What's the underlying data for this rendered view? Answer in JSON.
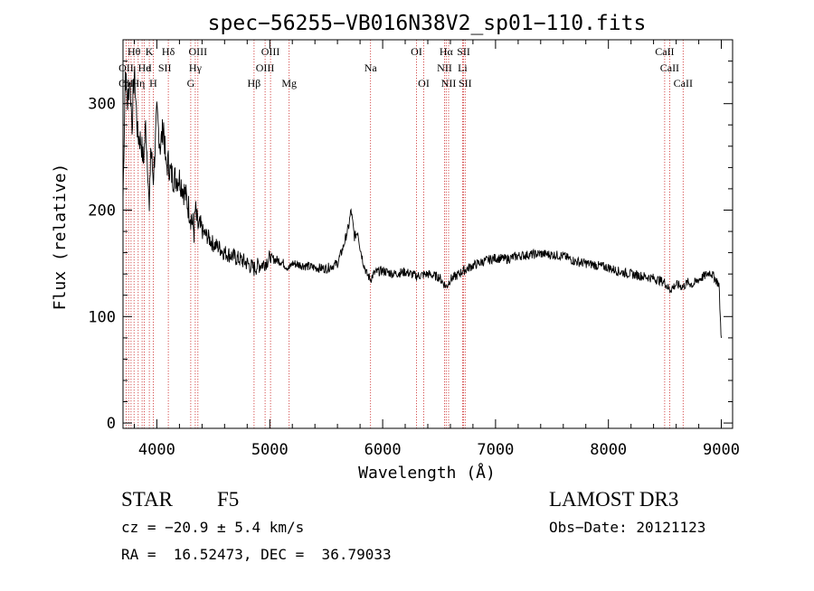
{
  "chart_data": {
    "type": "line",
    "title": "spec−56255−VB016N38V2_sp01−110.fits",
    "xlabel": "Wavelength (Å)",
    "ylabel": "Flux (relative)",
    "xlim": [
      3700,
      9100
    ],
    "ylim": [
      -5,
      360
    ],
    "xticks": [
      4000,
      5000,
      6000,
      7000,
      8000,
      9000
    ],
    "yticks": [
      0,
      100,
      200,
      300
    ],
    "series": [
      {
        "name": "flux",
        "x": [
          3700,
          3720,
          3740,
          3760,
          3780,
          3800,
          3830,
          3860,
          3880,
          3900,
          3920,
          3933,
          3945,
          3968,
          3980,
          4000,
          4030,
          4060,
          4080,
          4101,
          4120,
          4150,
          4200,
          4250,
          4300,
          4330,
          4340,
          4360,
          4400,
          4450,
          4500,
          4550,
          4600,
          4650,
          4700,
          4750,
          4800,
          4861,
          4900,
          4950,
          5000,
          5100,
          5172,
          5200,
          5300,
          5400,
          5500,
          5600,
          5650,
          5700,
          5720,
          5750,
          5780,
          5800,
          5830,
          5860,
          5893,
          5920,
          5950,
          6000,
          6100,
          6200,
          6300,
          6400,
          6500,
          6563,
          6600,
          6650,
          6700,
          6800,
          6900,
          7000,
          7100,
          7200,
          7300,
          7400,
          7500,
          7600,
          7700,
          7800,
          7900,
          8000,
          8100,
          8200,
          8300,
          8400,
          8500,
          8542,
          8600,
          8662,
          8700,
          8750,
          8800,
          8850,
          8900,
          8950,
          8980,
          8990,
          9000
        ],
        "y": [
          210,
          330,
          300,
          325,
          280,
          330,
          270,
          265,
          245,
          280,
          240,
          195,
          260,
          230,
          250,
          290,
          260,
          280,
          240,
          245,
          235,
          230,
          230,
          215,
          195,
          180,
          200,
          185,
          180,
          175,
          168,
          165,
          160,
          158,
          155,
          153,
          150,
          145,
          148,
          150,
          155,
          152,
          145,
          150,
          148,
          146,
          145,
          150,
          165,
          185,
          200,
          175,
          180,
          165,
          150,
          140,
          135,
          140,
          142,
          143,
          140,
          142,
          138,
          140,
          137,
          128,
          135,
          138,
          142,
          148,
          152,
          155,
          154,
          157,
          158,
          159,
          158,
          157,
          152,
          150,
          148,
          146,
          142,
          140,
          138,
          136,
          132,
          125,
          130,
          128,
          132,
          130,
          135,
          138,
          142,
          135,
          130,
          100,
          80
        ]
      }
    ],
    "line_positions": [
      3727,
      3750,
      3771,
      3798,
      3835,
      3869,
      3889,
      3933,
      3968,
      4101,
      4300,
      4340,
      4363,
      4861,
      4959,
      5007,
      5172,
      5893,
      6300,
      6364,
      6548,
      6563,
      6584,
      6708,
      6717,
      6731,
      8498,
      8542,
      8662
    ],
    "annotations": [
      {
        "label": "Hθ",
        "x": 3798,
        "row": 1
      },
      {
        "label": "K",
        "x": 3933,
        "row": 1
      },
      {
        "label": "Hδ",
        "x": 4101,
        "row": 1
      },
      {
        "label": "OIII",
        "x": 4363,
        "row": 1
      },
      {
        "label": "OIII",
        "x": 5007,
        "row": 1
      },
      {
        "label": "OI",
        "x": 6300,
        "row": 1
      },
      {
        "label": "Hα",
        "x": 6563,
        "row": 1
      },
      {
        "label": "SII",
        "x": 6717,
        "row": 1
      },
      {
        "label": "CaII",
        "x": 8498,
        "row": 1
      },
      {
        "label": "OII",
        "x": 3727,
        "row": 2
      },
      {
        "label": "He",
        "x": 3889,
        "row": 2
      },
      {
        "label": "I",
        "x": 3940,
        "row": 2
      },
      {
        "label": "SII",
        "x": 4070,
        "row": 2
      },
      {
        "label": "Hγ",
        "x": 4340,
        "row": 2
      },
      {
        "label": "OIII",
        "x": 4959,
        "row": 2
      },
      {
        "label": "Na",
        "x": 5893,
        "row": 2
      },
      {
        "label": "NII",
        "x": 6548,
        "row": 2
      },
      {
        "label": "Li",
        "x": 6708,
        "row": 2
      },
      {
        "label": "CaII",
        "x": 8542,
        "row": 2
      },
      {
        "label": "OII",
        "x": 3727,
        "row": 3
      },
      {
        "label": "Hη",
        "x": 3835,
        "row": 3
      },
      {
        "label": "H",
        "x": 3968,
        "row": 3
      },
      {
        "label": "G",
        "x": 4300,
        "row": 3
      },
      {
        "label": "Hβ",
        "x": 4861,
        "row": 3
      },
      {
        "label": "Mg",
        "x": 5172,
        "row": 3
      },
      {
        "label": "OI",
        "x": 6364,
        "row": 3
      },
      {
        "label": "NII",
        "x": 6584,
        "row": 3
      },
      {
        "label": "SII",
        "x": 6731,
        "row": 3
      },
      {
        "label": "CaII",
        "x": 8662,
        "row": 3
      }
    ]
  },
  "info": {
    "class": "STAR",
    "subclass": "F5",
    "survey": "LAMOST DR3",
    "cz": "cz = −20.9 ± 5.4 km/s",
    "obs_date": "Obs−Date: 20121123",
    "radec": "RA =  16.52473, DEC =  36.79033"
  }
}
